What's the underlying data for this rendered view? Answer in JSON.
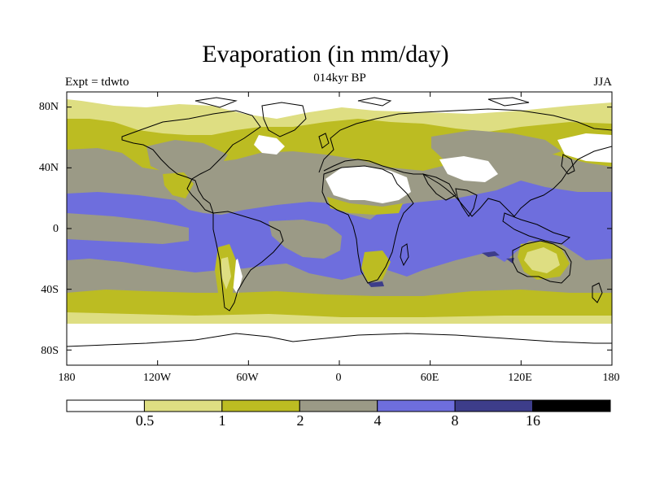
{
  "header": {
    "title": "Evaporation (in mm/day)",
    "expt": "Expt = tdwto",
    "period": "014kyr BP",
    "season": "JJA"
  },
  "map": {
    "lat_labels": [
      "80N",
      "40N",
      "0",
      "40S",
      "80S"
    ],
    "lon_labels": [
      "180",
      "120W",
      "60W",
      "0",
      "60E",
      "120E",
      "180"
    ],
    "lat_ticks": [
      80,
      40,
      0,
      -40,
      -80
    ],
    "lon_ticks": [
      -180,
      -120,
      -60,
      0,
      60,
      120,
      180
    ],
    "lat_range": [
      -90,
      90
    ],
    "lon_range": [
      -180,
      180
    ]
  },
  "colorbar": {
    "levels": [
      "0.5",
      "1",
      "2",
      "4",
      "8",
      "16"
    ],
    "colors": [
      "#ffffff",
      "#dede82",
      "#bcbc22",
      "#9b9a86",
      "#6e6edd",
      "#3d3d8a",
      "#000000"
    ]
  }
}
